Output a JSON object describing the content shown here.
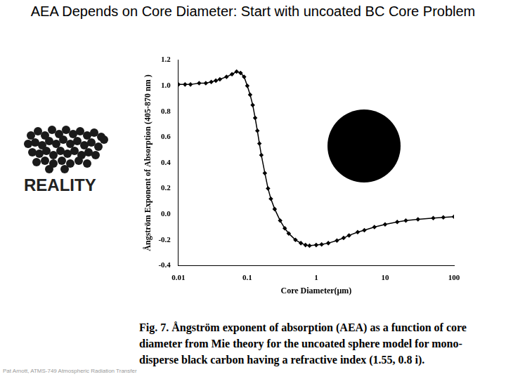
{
  "chart_data": {
    "type": "line",
    "title": "AEA Depends on Core Diameter: Start with uncoated BC Core Problem",
    "x_label": "Core Diameter(μm)",
    "y_label": "Ångström Exponent of Absorption (405-870 nm )",
    "annotations": {
      "image_label": "REALITY",
      "caption": "Fig. 7. Ångström exponent of absorption (AEA) as a function of core diameter from Mie theory for the uncoated sphere model for mono-disperse black carbon having a refractive index (1.55, 0.8 i).",
      "footer": "Pat Arnott, ATMS-749 Atmospheric Radiation Transfer"
    },
    "log": "x",
    "grid": false,
    "x": [
      0.01,
      0.0125,
      0.015,
      0.02,
      0.025,
      0.03,
      0.035,
      0.04,
      0.05,
      0.06,
      0.07,
      0.08,
      0.09,
      0.1,
      0.11,
      0.12,
      0.13,
      0.14,
      0.15,
      0.16,
      0.18,
      0.2,
      0.22,
      0.25,
      0.3,
      0.35,
      0.4,
      0.5,
      0.6,
      0.7,
      0.8,
      1,
      1.2,
      1.5,
      2,
      2.5,
      3,
      4,
      5,
      7,
      10,
      15,
      20,
      30,
      50,
      70,
      100
    ],
    "series": [
      {
        "name": "AEA",
        "color": "#000000",
        "marker": "diamond",
        "line_style": "solid",
        "values": [
          1.01,
          1.01,
          1.01,
          1.02,
          1.02,
          1.03,
          1.04,
          1.05,
          1.07,
          1.09,
          1.11,
          1.1,
          1.07,
          1.0,
          0.93,
          0.85,
          0.75,
          0.65,
          0.55,
          0.46,
          0.32,
          0.2,
          0.12,
          0.04,
          -0.05,
          -0.11,
          -0.15,
          -0.2,
          -0.225,
          -0.24,
          -0.245,
          -0.24,
          -0.235,
          -0.225,
          -0.205,
          -0.185,
          -0.165,
          -0.14,
          -0.125,
          -0.1,
          -0.08,
          -0.06,
          -0.05,
          -0.04,
          -0.03,
          -0.025,
          -0.02
        ]
      }
    ],
    "xlim": [
      0.01,
      100
    ],
    "xticks": [
      0.01,
      0.1,
      1,
      10,
      100
    ],
    "ylim": [
      -0.4,
      1.2
    ],
    "yticks": [
      -0.4,
      -0.2,
      {
        "value": 0,
        "label": "0.0"
      },
      0.2,
      0.4,
      0.6,
      0.8,
      {
        "value": 1,
        "label": "1.0"
      },
      1.2
    ]
  }
}
